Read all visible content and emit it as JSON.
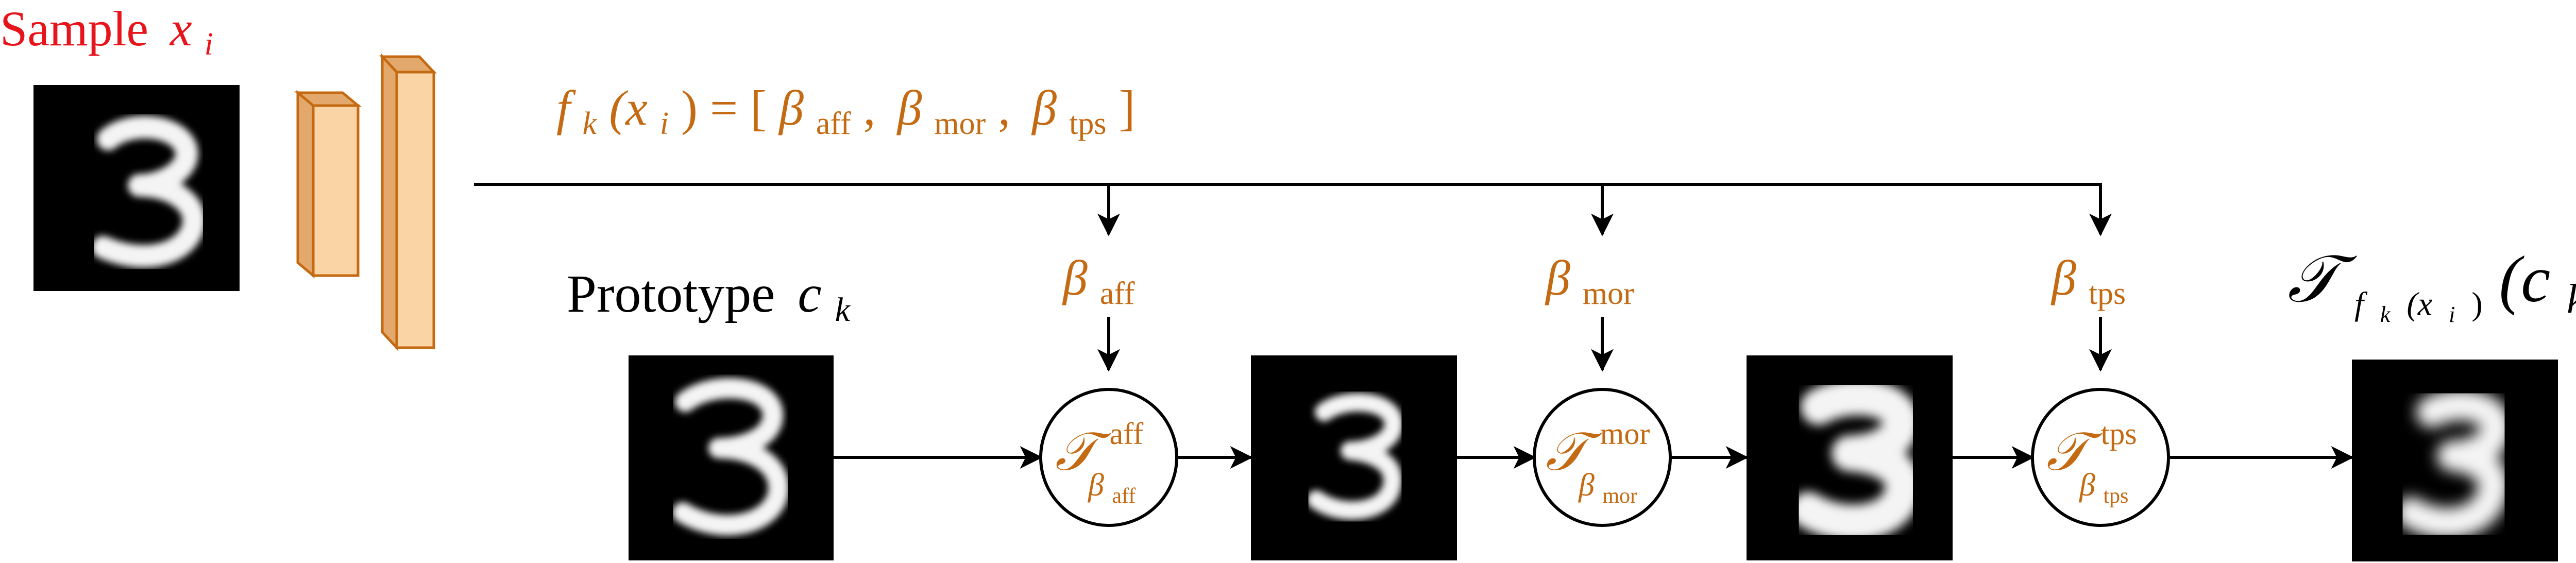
{
  "sample": {
    "label_word": "Sample",
    "label_var": "x",
    "label_sub": "i"
  },
  "encoder_output": {
    "lhs_f": "f",
    "lhs_k": "k",
    "lhs_arg": "(x",
    "lhs_arg_sub": "i",
    "equals": ") = [",
    "beta1": "β",
    "beta1_sub": "aff",
    "sep1": ",",
    "beta2": "β",
    "beta2_sub": "mor",
    "sep2": ",",
    "beta3": "β",
    "beta3_sub": "tps",
    "close": "]"
  },
  "prototype": {
    "label_word": "Prototype",
    "label_var": "c",
    "label_sub": "k"
  },
  "params": [
    {
      "beta": "β",
      "sub": "aff"
    },
    {
      "beta": "β",
      "sub": "mor"
    },
    {
      "beta": "β",
      "sub": "tps"
    }
  ],
  "transforms": [
    {
      "symbol": "𝒯",
      "sup": "aff",
      "sub_beta": "β",
      "sub_sub": "aff"
    },
    {
      "symbol": "𝒯",
      "sup": "mor",
      "sub_beta": "β",
      "sub_sub": "mor"
    },
    {
      "symbol": "𝒯",
      "sup": "tps",
      "sub_beta": "β",
      "sub_sub": "tps"
    }
  ],
  "output": {
    "symbol": "𝒯",
    "sub_f": "f",
    "sub_k": "k",
    "sub_arg": "(x",
    "sub_arg_i": "i",
    "sub_close": ")",
    "arg_open": "(c",
    "arg_sub": "k",
    "arg_close": ")"
  },
  "colors": {
    "sample_label": "#e8141c",
    "params": "#c46a12",
    "cnn_face": "#fad4a4",
    "cnn_side": "#e3a86b",
    "arrows": "#000000"
  },
  "icons": [
    "digit-three-image",
    "cnn-encoder-icon",
    "arrow-icon"
  ]
}
